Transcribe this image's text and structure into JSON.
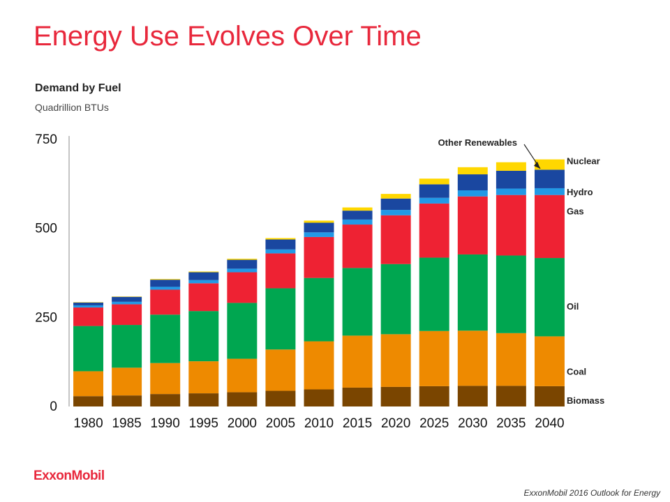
{
  "page": {
    "title": "Energy Use Evolves Over Time",
    "logo_text": "ExxonMobil",
    "footer": "ExxonMobil 2016 Outlook for Energy"
  },
  "chart_data": {
    "type": "bar",
    "stacked": true,
    "title": "Demand by Fuel",
    "subtitle": "Quadrillion BTUs",
    "xlabel": "",
    "ylabel": "",
    "ylim": [
      0,
      750
    ],
    "yticks": [
      0,
      250,
      500,
      750
    ],
    "grid": false,
    "legend": "labels at right of last bar",
    "categories": [
      "1980",
      "1985",
      "1990",
      "1995",
      "2000",
      "2005",
      "2010",
      "2015",
      "2020",
      "2025",
      "2030",
      "2035",
      "2040"
    ],
    "series": [
      {
        "name": "Biomass",
        "color": "#7a4500",
        "values": [
          29,
          31,
          35,
          37,
          40,
          44,
          48,
          53,
          55,
          57,
          58,
          58,
          57
        ]
      },
      {
        "name": "Coal",
        "color": "#ee8a00",
        "values": [
          70,
          78,
          87,
          90,
          94,
          116,
          135,
          146,
          148,
          155,
          155,
          148,
          140
        ]
      },
      {
        "name": "Oil",
        "color": "#00a650",
        "values": [
          127,
          120,
          136,
          141,
          157,
          172,
          178,
          190,
          197,
          206,
          214,
          218,
          220
        ]
      },
      {
        "name": "Gas",
        "color": "#ee2233",
        "values": [
          52,
          58,
          70,
          78,
          86,
          98,
          115,
          122,
          137,
          152,
          163,
          170,
          177
        ]
      },
      {
        "name": "Hydro",
        "color": "#2299e6",
        "values": [
          6,
          7,
          8,
          9,
          10,
          11,
          13,
          14,
          15,
          16,
          17,
          18,
          19
        ]
      },
      {
        "name": "Nuclear",
        "color": "#1a47a0",
        "values": [
          8,
          14,
          20,
          22,
          25,
          28,
          27,
          25,
          32,
          38,
          45,
          50,
          52
        ]
      },
      {
        "name": "Other Renewables",
        "color": "#ffd700",
        "values": [
          1,
          1,
          2,
          2,
          3,
          4,
          6,
          9,
          13,
          16,
          20,
          24,
          29
        ]
      }
    ],
    "label_annotation": "Other Renewables"
  }
}
